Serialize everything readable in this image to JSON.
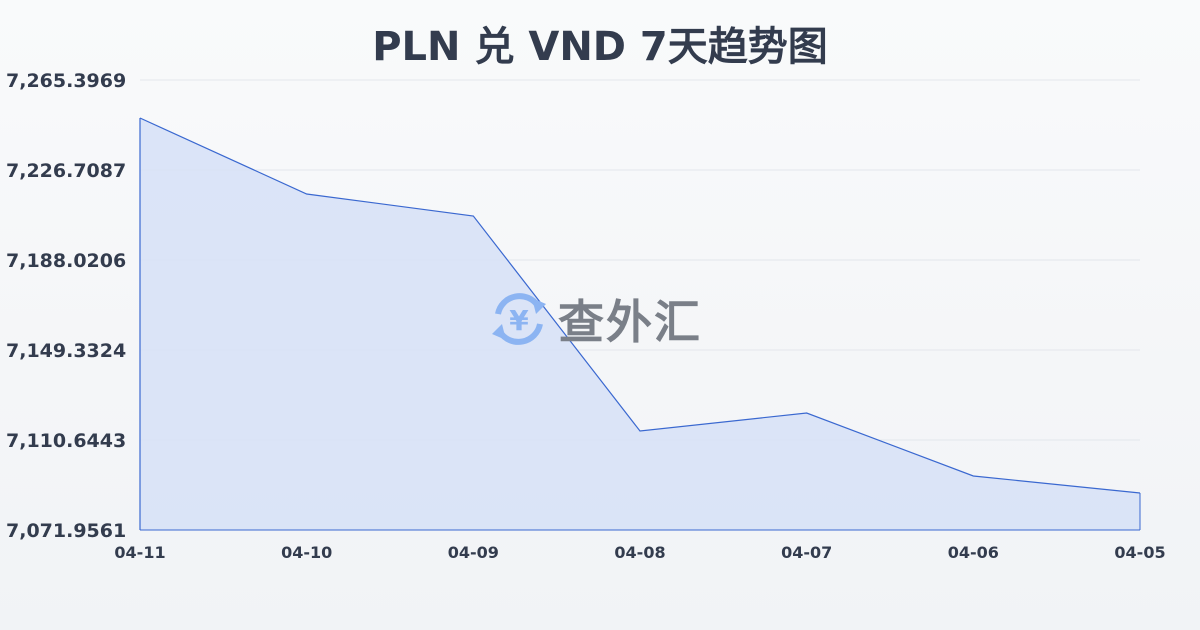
{
  "chart_data": {
    "type": "area",
    "title": "PLN 兑 VND 7天趋势图",
    "xlabel": "",
    "ylabel": "",
    "categories": [
      "04-11",
      "04-10",
      "04-09",
      "04-08",
      "04-07",
      "04-06",
      "04-05"
    ],
    "values": [
      7249.06,
      7216.39,
      7206.93,
      7114.51,
      7122.25,
      7095.17,
      7087.86
    ],
    "yticks": [
      "7,265.3969",
      "7,226.7087",
      "7,188.0206",
      "7,149.3324",
      "7,110.6443",
      "7,071.9561"
    ],
    "ylim": [
      7071.9561,
      7265.3969
    ],
    "grid": true,
    "colors": {
      "line": "#3a68d0",
      "fill": "#d6e1f7",
      "grid": "#e3e6ec",
      "text": "#333c4e"
    }
  },
  "watermark": {
    "text": "查外汇",
    "icon": "yen-exchange-icon",
    "icon_color": "#8cb4f2"
  }
}
